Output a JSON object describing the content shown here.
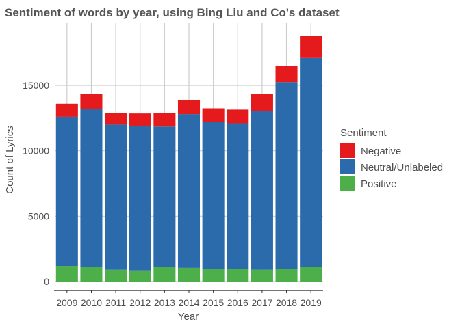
{
  "chart_data": {
    "type": "bar",
    "stacked": true,
    "title": "Sentiment of words by year, using Bing Liu and Co's dataset",
    "xlabel": "Year",
    "ylabel": "Count of Lyrics",
    "categories": [
      "2009",
      "2010",
      "2011",
      "2012",
      "2013",
      "2014",
      "2015",
      "2016",
      "2017",
      "2018",
      "2019"
    ],
    "series": [
      {
        "name": "Positive",
        "color": "#4DAF4A",
        "values": [
          1200,
          1100,
          900,
          850,
          1100,
          1050,
          950,
          950,
          900,
          950,
          1100
        ]
      },
      {
        "name": "Neutral/Unlabeled",
        "color": "#2B6BAC",
        "values": [
          11400,
          12100,
          11100,
          11050,
          10750,
          11750,
          11250,
          11150,
          12150,
          14300,
          16000
        ]
      },
      {
        "name": "Negative",
        "color": "#E41A1C",
        "values": [
          1000,
          1150,
          900,
          950,
          1050,
          1050,
          1050,
          1050,
          1300,
          1250,
          1700
        ]
      }
    ],
    "stack_order_bottom_to_top": [
      "Positive",
      "Neutral/Unlabeled",
      "Negative"
    ],
    "ylim": [
      0,
      19000
    ],
    "yticks": [
      0,
      5000,
      10000,
      15000
    ],
    "grid": true,
    "legend": {
      "title": "Sentiment",
      "position": "right",
      "entries": [
        "Negative",
        "Neutral/Unlabeled",
        "Positive"
      ]
    }
  }
}
